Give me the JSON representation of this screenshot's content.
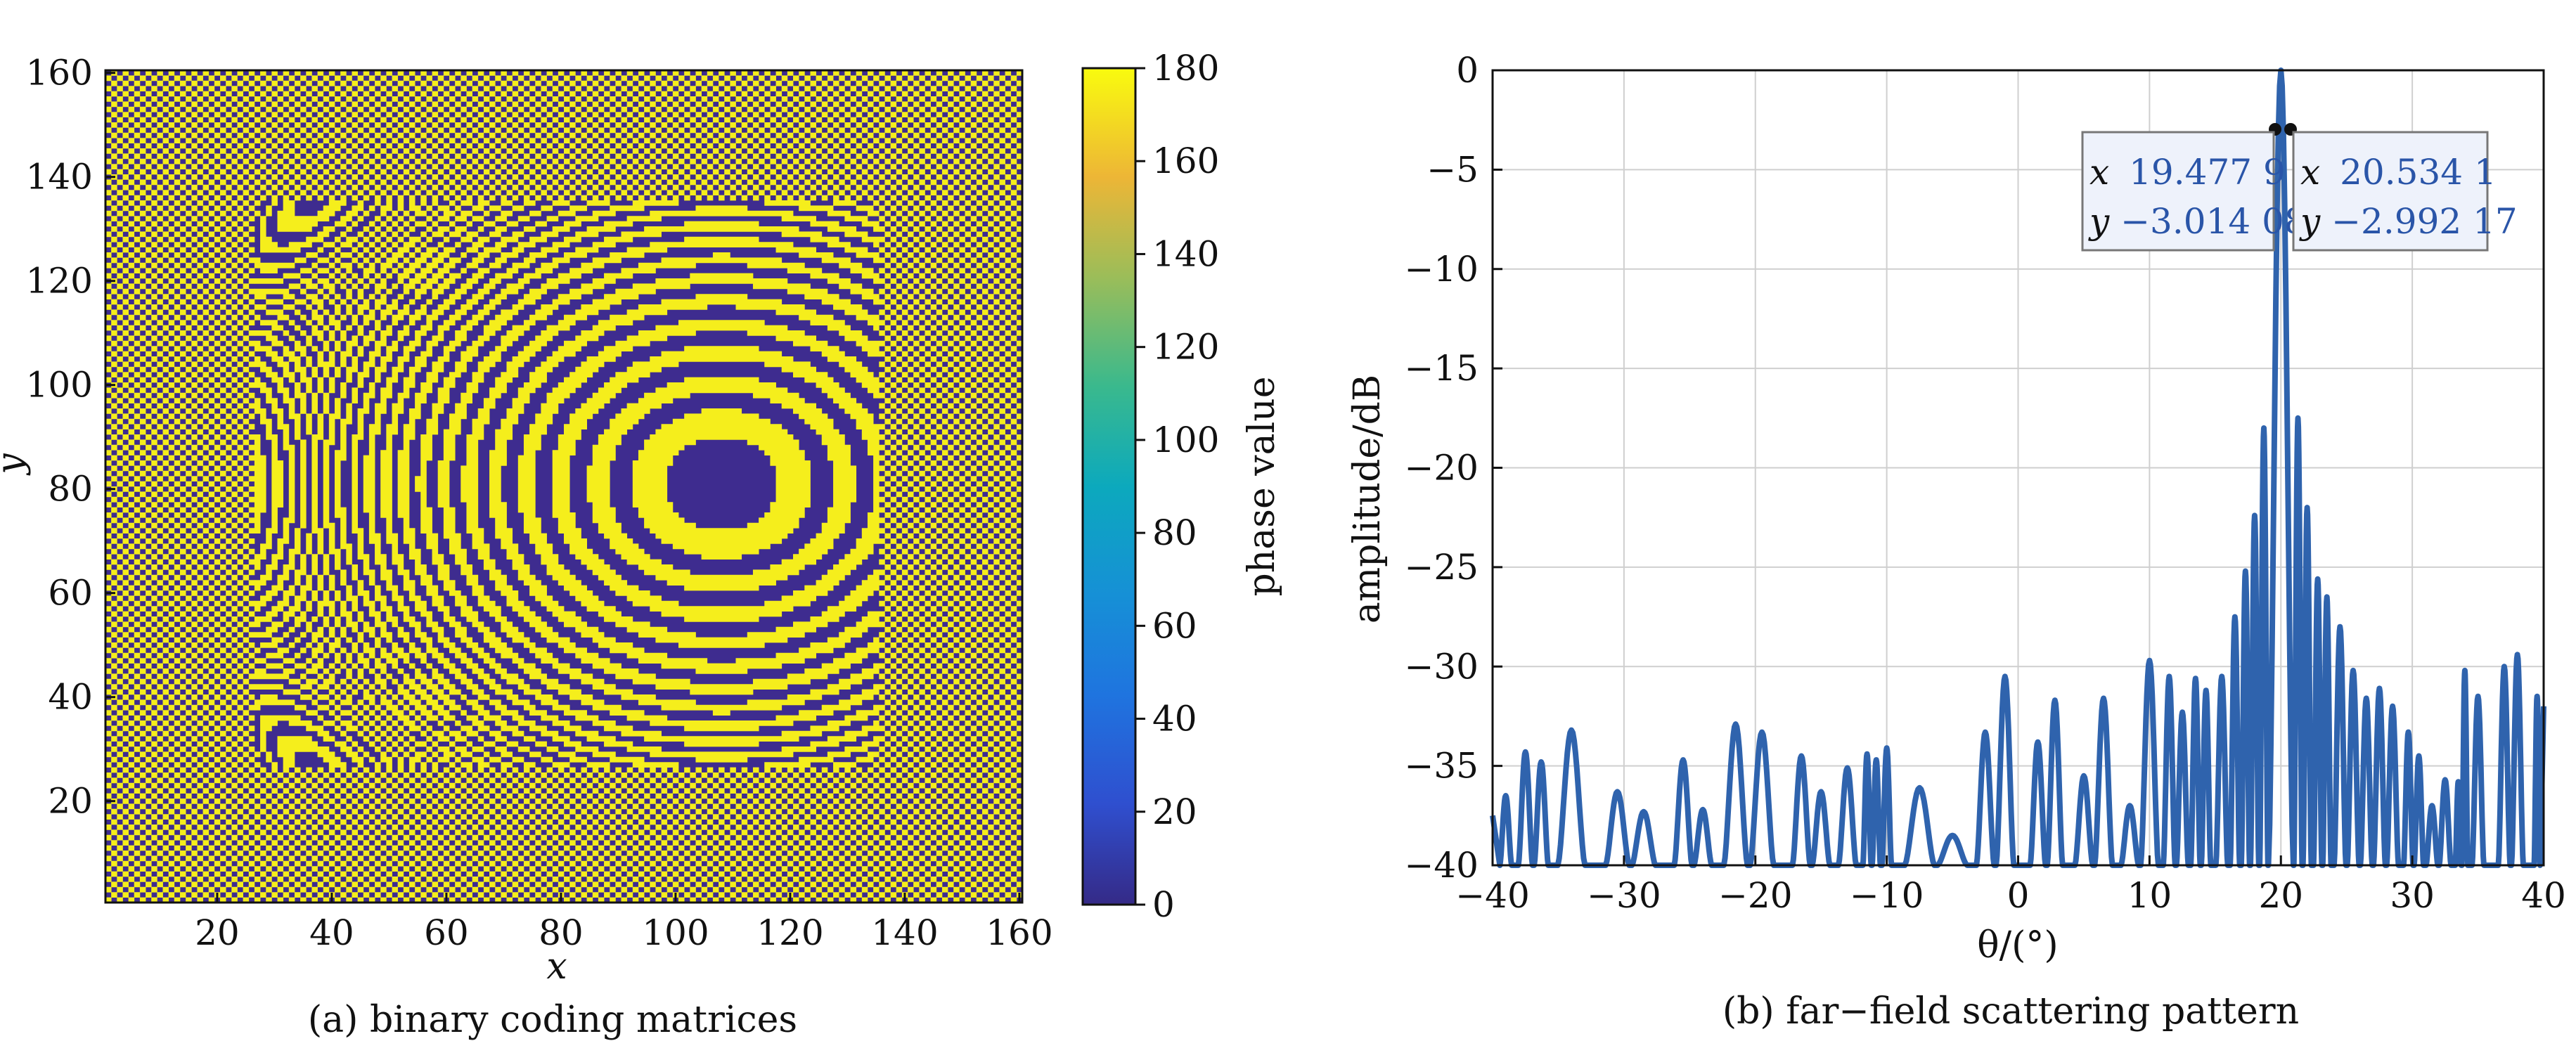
{
  "panel_a": {
    "caption": "(a) binary coding matrices",
    "xlabel": "x",
    "ylabel": "y",
    "colorbar_label": "phase value",
    "x_ticks": [
      "20",
      "40",
      "60",
      "80",
      "100",
      "120",
      "140",
      "160"
    ],
    "y_ticks": [
      "20",
      "40",
      "60",
      "80",
      "100",
      "120",
      "140",
      "160"
    ],
    "colorbar_ticks": [
      "0",
      "20",
      "40",
      "60",
      "80",
      "100",
      "120",
      "140",
      "160",
      "180"
    ]
  },
  "panel_b": {
    "caption": "(b) far−field scattering pattern",
    "xlabel": "θ/(°)",
    "ylabel": "amplitude/dB",
    "x_ticks": [
      "−40",
      "−30",
      "−20",
      "−10",
      "0",
      "10",
      "20",
      "30",
      "40"
    ],
    "y_ticks": [
      "0",
      "−5",
      "−10",
      "−15",
      "−20",
      "−25",
      "−30",
      "−35",
      "−40"
    ],
    "datatip_left": {
      "x_key": "x",
      "x_value": "19.477 9",
      "y_key": "y",
      "y_value": "−3.014 08"
    },
    "datatip_right": {
      "x_key": "x",
      "x_value": "20.534 1",
      "y_key": "y",
      "y_value": "−2.992 17"
    }
  },
  "colors": {
    "phase_low": "#3e2c8f",
    "phase_high": "#f5ee1c",
    "curve": "#2f63ad",
    "datatip_text": "#2a55a8",
    "grid": "#cfcfcf"
  },
  "chart_data": [
    {
      "type": "heatmap",
      "x_range": [
        1,
        160
      ],
      "y_range": [
        1,
        160
      ],
      "value_range": [
        0,
        180
      ],
      "colormap": "parula",
      "values_used": [
        0,
        180
      ],
      "background_pattern": "checkerboard",
      "coded_region": {
        "x": [
          27,
          135
        ],
        "y": [
          27,
          135
        ]
      },
      "ring_center": {
        "x": 108,
        "y": 81
      },
      "xlabel": "x",
      "ylabel": "y",
      "colorbar_label": "phase value"
    },
    {
      "type": "line",
      "xlabel": "θ/(°)",
      "ylabel": "amplitude/dB",
      "xlim": [
        -40,
        40
      ],
      "ylim": [
        -40,
        0
      ],
      "grid": true,
      "main_lobe": {
        "x": 20,
        "y": 0
      },
      "half_power_points": [
        {
          "x": 19.4779,
          "y": -3.01408
        },
        {
          "x": 20.5341,
          "y": -2.99217
        }
      ],
      "peaks": [
        {
          "x": -39.0,
          "y": -36.5
        },
        {
          "x": -37.5,
          "y": -34.3
        },
        {
          "x": -36.3,
          "y": -34.8
        },
        {
          "x": -34.0,
          "y": -33.2
        },
        {
          "x": -30.5,
          "y": -36.3
        },
        {
          "x": -28.5,
          "y": -37.3
        },
        {
          "x": -25.5,
          "y": -34.7
        },
        {
          "x": -24.0,
          "y": -37.2
        },
        {
          "x": -21.5,
          "y": -32.9
        },
        {
          "x": -19.5,
          "y": -33.3
        },
        {
          "x": -16.5,
          "y": -34.5
        },
        {
          "x": -15.0,
          "y": -36.3
        },
        {
          "x": -13.0,
          "y": -35.1
        },
        {
          "x": -11.5,
          "y": -34.4
        },
        {
          "x": -10.8,
          "y": -34.7
        },
        {
          "x": -10.0,
          "y": -34.1
        },
        {
          "x": -7.5,
          "y": -36.1
        },
        {
          "x": -5.0,
          "y": -38.5
        },
        {
          "x": -2.5,
          "y": -33.3
        },
        {
          "x": -1.0,
          "y": -30.5
        },
        {
          "x": 1.5,
          "y": -33.8
        },
        {
          "x": 2.8,
          "y": -31.7
        },
        {
          "x": 5.0,
          "y": -35.5
        },
        {
          "x": 6.5,
          "y": -31.6
        },
        {
          "x": 8.5,
          "y": -37.0
        },
        {
          "x": 10.0,
          "y": -29.7
        },
        {
          "x": 11.5,
          "y": -30.5
        },
        {
          "x": 12.5,
          "y": -32.3
        },
        {
          "x": 13.5,
          "y": -30.6
        },
        {
          "x": 14.3,
          "y": -31.2
        },
        {
          "x": 15.5,
          "y": -30.5
        },
        {
          "x": 16.5,
          "y": -27.5
        },
        {
          "x": 17.3,
          "y": -25.2
        },
        {
          "x": 18.0,
          "y": -22.4
        },
        {
          "x": 18.7,
          "y": -18.0
        },
        {
          "x": 20.0,
          "y": 0.0
        },
        {
          "x": 21.3,
          "y": -17.5
        },
        {
          "x": 22.0,
          "y": -22.0
        },
        {
          "x": 22.8,
          "y": -25.6
        },
        {
          "x": 23.5,
          "y": -26.5
        },
        {
          "x": 24.5,
          "y": -28.0
        },
        {
          "x": 25.5,
          "y": -30.2
        },
        {
          "x": 26.5,
          "y": -31.6
        },
        {
          "x": 27.5,
          "y": -31.1
        },
        {
          "x": 28.5,
          "y": -32.0
        },
        {
          "x": 29.7,
          "y": -33.3
        },
        {
          "x": 30.5,
          "y": -34.5
        },
        {
          "x": 31.5,
          "y": -37.0
        },
        {
          "x": 32.5,
          "y": -35.7
        },
        {
          "x": 33.5,
          "y": -35.8
        },
        {
          "x": 34.0,
          "y": -30.2
        },
        {
          "x": 35.0,
          "y": -31.5
        },
        {
          "x": 37.0,
          "y": -30.0
        },
        {
          "x": 38.0,
          "y": -29.4
        },
        {
          "x": 39.5,
          "y": -31.5
        }
      ]
    }
  ]
}
